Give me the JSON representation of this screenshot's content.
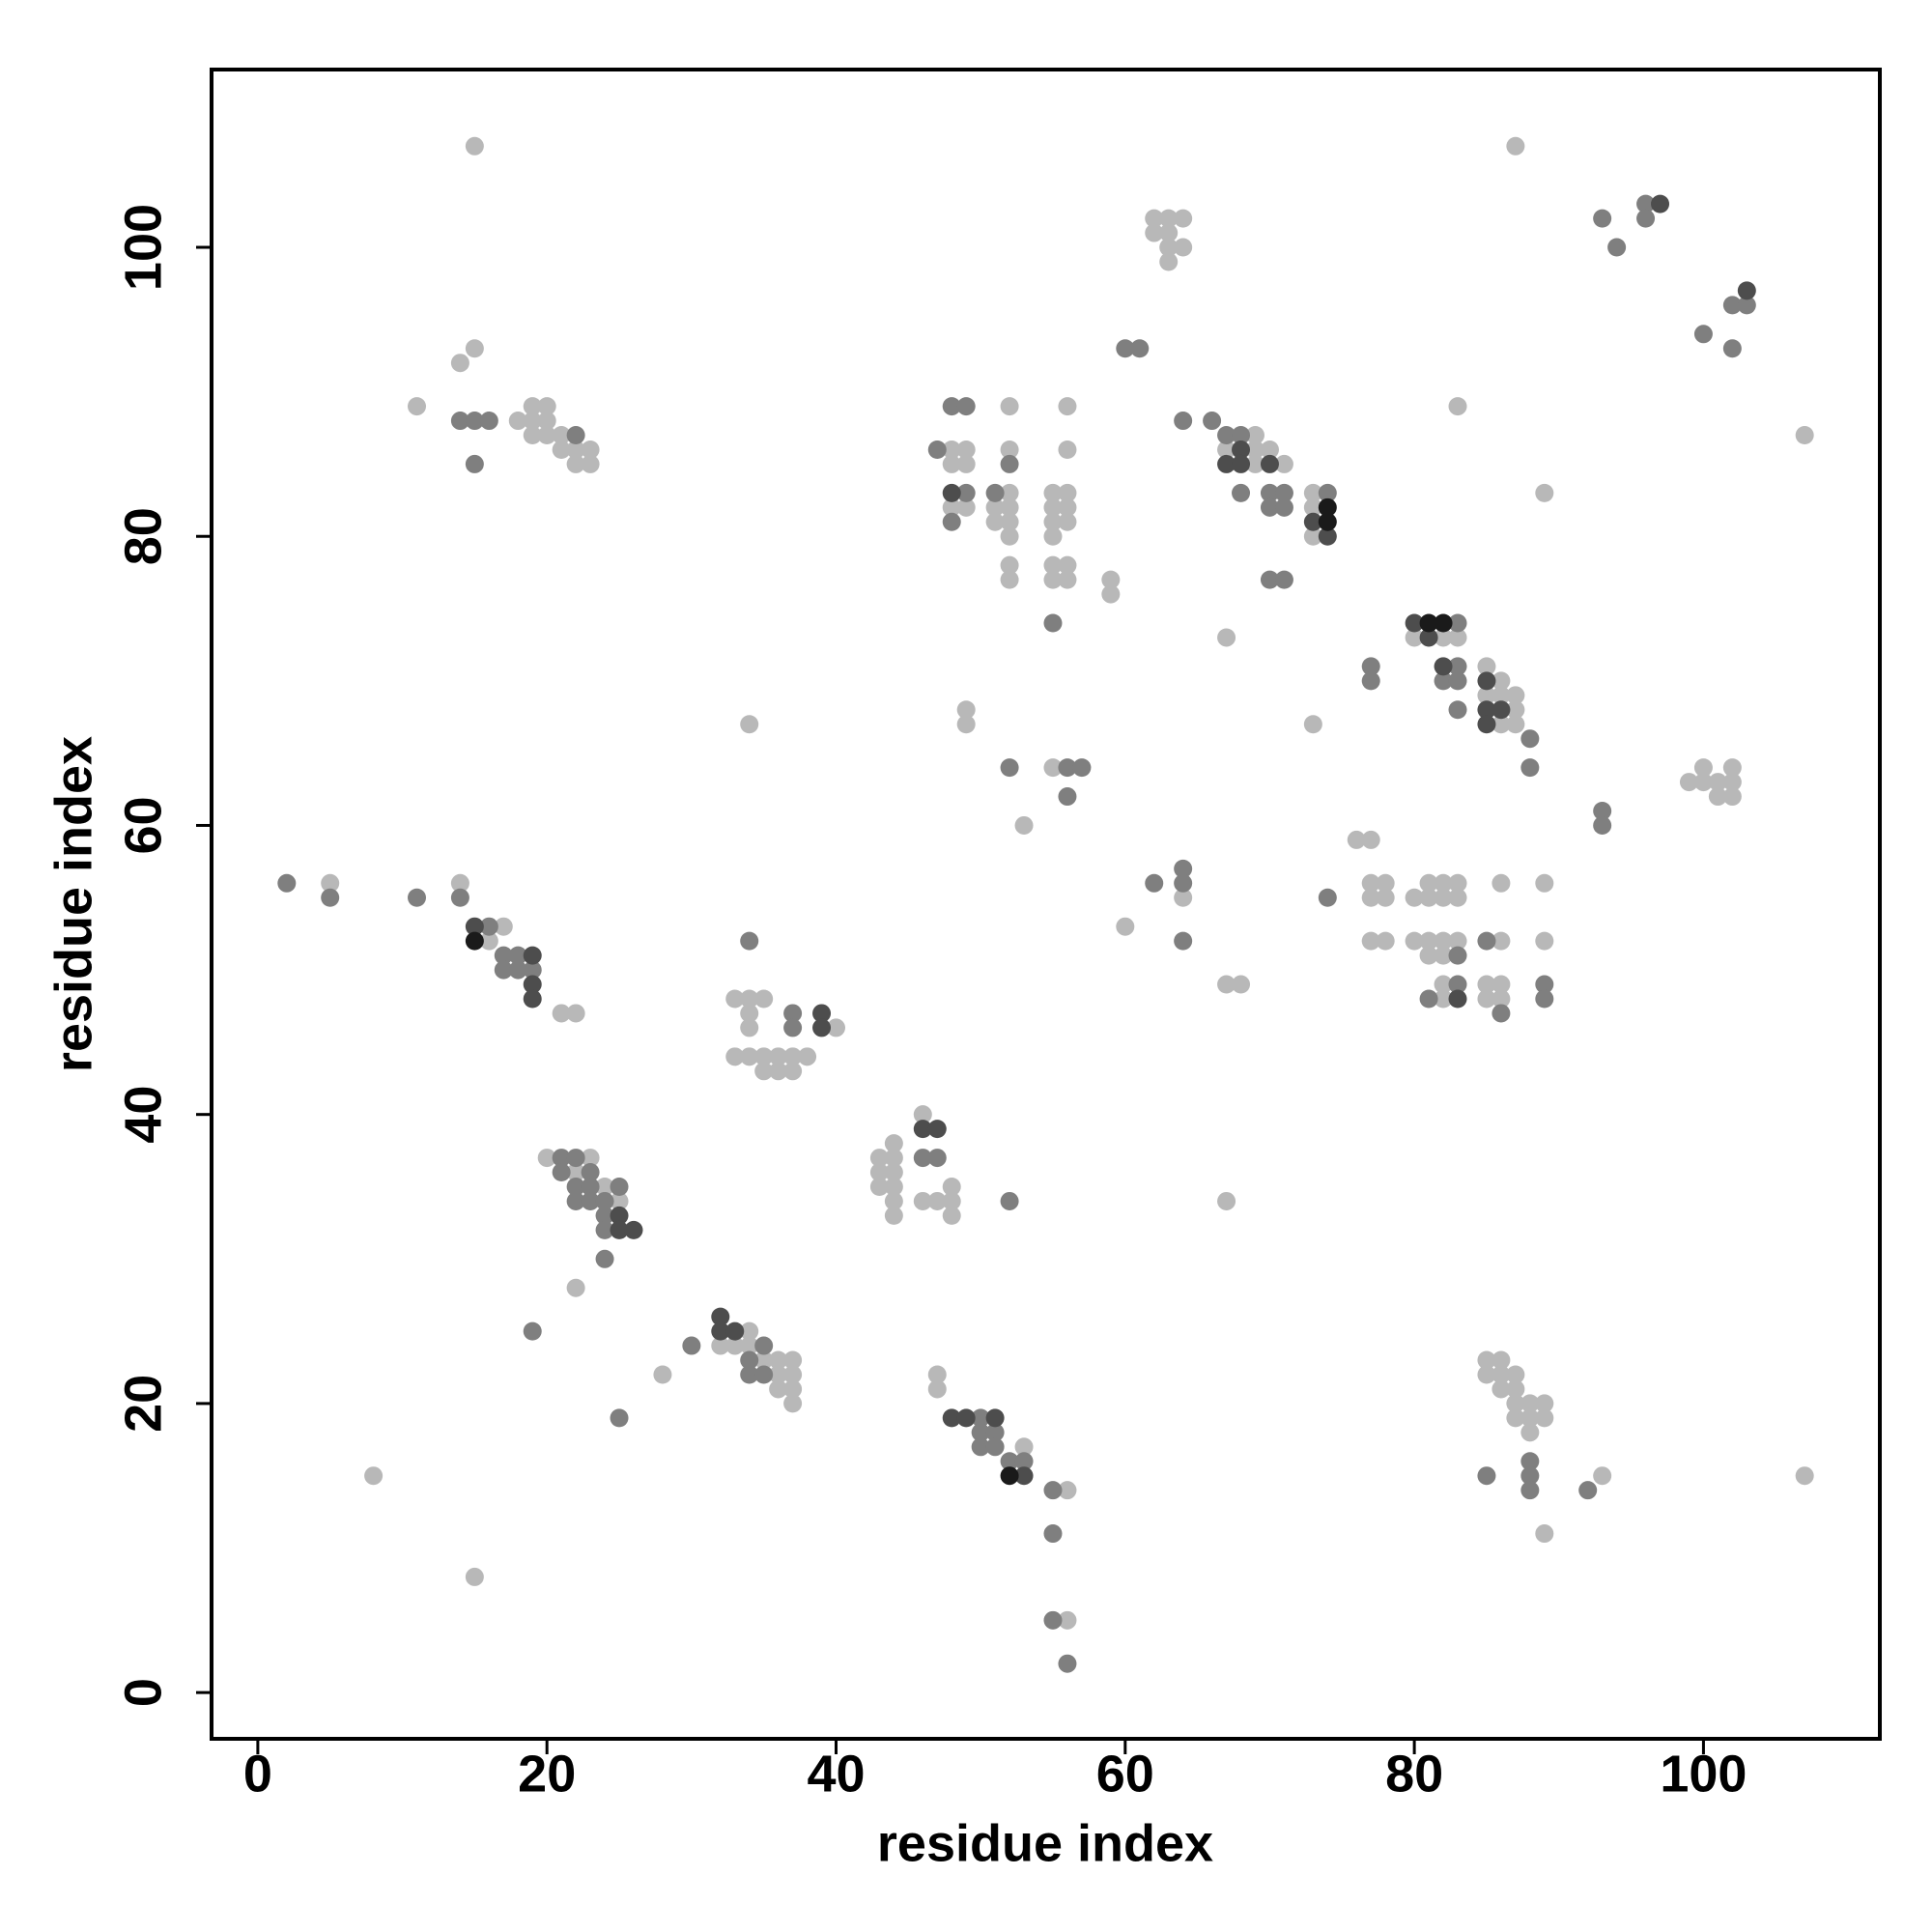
{
  "chart_data": {
    "type": "scatter",
    "xlabel": "residue index",
    "ylabel": "residue index",
    "xlim": [
      -3.2,
      112.2
    ],
    "ylim": [
      -3.2,
      112.3
    ],
    "xticks": [
      0,
      20,
      40,
      60,
      80,
      100
    ],
    "yticks": [
      0,
      20,
      40,
      60,
      80,
      100
    ],
    "series": [
      {
        "color": "#b8b8b8",
        "x": [
          15,
          14,
          15,
          11,
          18,
          19,
          20,
          19,
          20,
          19,
          20,
          21,
          21,
          22,
          23,
          22,
          23,
          48,
          49,
          48,
          49,
          48,
          49,
          51,
          52,
          52,
          51,
          52,
          52,
          52,
          52,
          52,
          52,
          55,
          56,
          55,
          56,
          55,
          56,
          55,
          55,
          56,
          55,
          56,
          56,
          56,
          59,
          59,
          49,
          49,
          55,
          53,
          62,
          63,
          64,
          62,
          63,
          63,
          64,
          63,
          69,
          67,
          69,
          70,
          69,
          71,
          73,
          73,
          73,
          67,
          87,
          107,
          83,
          89,
          80,
          82,
          83,
          85,
          86,
          85,
          86,
          87,
          87,
          86,
          87,
          73,
          100,
          102,
          99,
          100,
          101,
          102,
          101,
          102,
          76,
          77,
          77,
          78,
          77,
          78,
          77,
          78,
          80,
          81,
          82,
          83,
          81,
          82,
          83,
          80,
          81,
          82,
          83,
          81,
          82,
          82,
          82,
          86,
          86,
          85,
          86,
          85,
          86,
          89,
          89,
          64,
          60,
          67,
          68,
          5,
          14,
          17,
          16,
          21,
          22,
          34,
          33,
          34,
          35,
          34,
          34,
          40,
          33,
          34,
          35,
          36,
          37,
          38,
          35,
          36,
          37,
          20,
          23,
          22,
          24,
          25,
          22,
          46,
          43,
          44,
          44,
          43,
          44,
          43,
          44,
          44,
          44,
          46,
          47,
          48,
          48,
          48,
          67,
          34,
          32,
          33,
          34,
          35,
          36,
          37,
          36,
          37,
          36,
          37,
          37,
          28,
          47,
          47,
          53,
          56,
          56,
          8,
          15,
          85,
          86,
          85,
          86,
          87,
          86,
          87,
          87,
          88,
          89,
          87,
          88,
          89,
          88,
          89,
          93,
          107
        ],
        "values": [
          107,
          92,
          93,
          89,
          88,
          89,
          89,
          88,
          88,
          87,
          87,
          87,
          86,
          86,
          86,
          85,
          85,
          86,
          86,
          85,
          85,
          82,
          82,
          82,
          83,
          82,
          81,
          81,
          80,
          89,
          86,
          78,
          77,
          83,
          83,
          82,
          82,
          81,
          81,
          80,
          78,
          78,
          77,
          77,
          89,
          86,
          77,
          76,
          68,
          67,
          64,
          60,
          102,
          102,
          102,
          101,
          101,
          100,
          100,
          99,
          87,
          86,
          86,
          86,
          85,
          85,
          83,
          82,
          80,
          73,
          107,
          87,
          89,
          83,
          73,
          73,
          73,
          71,
          70,
          69,
          69,
          69,
          68,
          67,
          67,
          67,
          64,
          64,
          63,
          63,
          63,
          63,
          62,
          62,
          59,
          59,
          56,
          56,
          55,
          55,
          52,
          52,
          55,
          56,
          56,
          56,
          55,
          55,
          55,
          52,
          52,
          52,
          52,
          51,
          51,
          49,
          48,
          56,
          52,
          49,
          49,
          48,
          48,
          56,
          52,
          55,
          53,
          49,
          49,
          56,
          56,
          53,
          52,
          47,
          47,
          67,
          48,
          48,
          48,
          47,
          46,
          46,
          44,
          44,
          44,
          44,
          44,
          44,
          43,
          43,
          43,
          37,
          37,
          36,
          35,
          34,
          28,
          40,
          37,
          37,
          38,
          36,
          36,
          35,
          35,
          34,
          33,
          34,
          34,
          35,
          34,
          33,
          34,
          25,
          24,
          24,
          24,
          23,
          23,
          23,
          22,
          22,
          21,
          21,
          20,
          22,
          22,
          21,
          17,
          14,
          5,
          15,
          8,
          23,
          23,
          22,
          22,
          22,
          21,
          21,
          20,
          20,
          20,
          19,
          19,
          19,
          18,
          11,
          15,
          15
        ]
      },
      {
        "color": "#7f7f7f",
        "x": [
          14,
          15,
          16,
          15,
          22,
          48,
          49,
          47,
          49,
          48,
          51,
          52,
          55,
          52,
          56,
          57,
          56,
          60,
          61,
          64,
          66,
          67,
          68,
          68,
          70,
          71,
          70,
          71,
          70,
          71,
          74,
          93,
          96,
          96,
          94,
          102,
          103,
          100,
          102,
          83,
          77,
          77,
          83,
          82,
          83,
          83,
          88,
          88,
          93,
          93,
          74,
          83,
          83,
          81,
          85,
          86,
          89,
          89,
          62,
          64,
          64,
          64,
          2,
          5,
          11,
          14,
          16,
          17,
          18,
          17,
          18,
          19,
          34,
          37,
          37,
          21,
          22,
          21,
          23,
          22,
          23,
          25,
          22,
          23,
          24,
          24,
          24,
          24,
          19,
          46,
          47,
          52,
          35,
          34,
          34,
          35,
          30,
          25,
          50,
          50,
          51,
          50,
          51,
          52,
          53,
          55,
          55,
          55,
          56,
          88,
          88,
          88,
          85,
          92
        ],
        "values": [
          88,
          88,
          88,
          85,
          87,
          89,
          89,
          86,
          83,
          81,
          83,
          85,
          74,
          64,
          64,
          64,
          62,
          93,
          93,
          88,
          88,
          87,
          87,
          83,
          83,
          83,
          82,
          82,
          77,
          77,
          83,
          102,
          103,
          102,
          100,
          96,
          96,
          94,
          93,
          74,
          71,
          70,
          71,
          70,
          70,
          68,
          66,
          64,
          61,
          60,
          55,
          51,
          49,
          48,
          52,
          47,
          49,
          48,
          56,
          57,
          56,
          52,
          56,
          55,
          55,
          55,
          53,
          51,
          51,
          50,
          50,
          50,
          52,
          47,
          46,
          37,
          37,
          36,
          36,
          35,
          35,
          35,
          34,
          34,
          34,
          33,
          32,
          30,
          25,
          37,
          37,
          34,
          24,
          23,
          22,
          22,
          24,
          19,
          19,
          18,
          18,
          17,
          17,
          16,
          16,
          14,
          11,
          5,
          2,
          16,
          15,
          14,
          15,
          14
        ]
      },
      {
        "color": "#4d4d4d",
        "x": [
          48,
          68,
          67,
          68,
          70,
          73,
          74,
          97,
          103,
          80,
          81,
          82,
          85,
          85,
          86,
          85,
          83,
          15,
          19,
          19,
          19,
          39,
          39,
          25,
          25,
          26,
          46,
          47,
          32,
          32,
          33,
          48,
          49,
          51,
          53
        ],
        "values": [
          83,
          86,
          85,
          85,
          85,
          81,
          80,
          103,
          97,
          74,
          73,
          71,
          70,
          68,
          68,
          67,
          48,
          53,
          51,
          49,
          48,
          47,
          46,
          33,
          32,
          32,
          39,
          39,
          26,
          25,
          25,
          19,
          19,
          19,
          15
        ]
      },
      {
        "color": "#1a1a1a",
        "x": [
          74,
          74,
          81,
          82,
          15,
          52
        ],
        "values": [
          82,
          81,
          74,
          74,
          52,
          15
        ]
      }
    ]
  }
}
